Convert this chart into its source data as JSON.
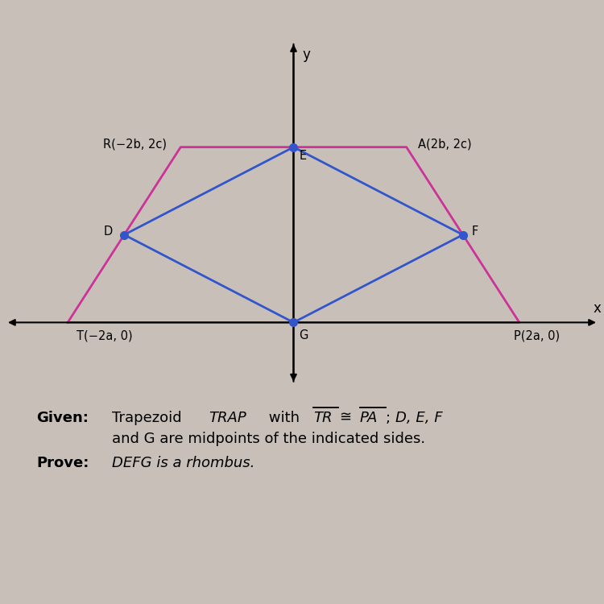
{
  "T": [
    -4,
    0
  ],
  "R": [
    -2,
    3
  ],
  "A": [
    2,
    3
  ],
  "P": [
    4,
    0
  ],
  "D": [
    -3,
    1.5
  ],
  "E": [
    0,
    3
  ],
  "F": [
    3,
    1.5
  ],
  "G": [
    0,
    0
  ],
  "trapezoid_color": "#cc3399",
  "rhombus_color": "#3355cc",
  "point_color": "#3355cc",
  "background_color": "#c8c0b8",
  "xlim": [
    -5.2,
    5.5
  ],
  "ylim": [
    -1.2,
    5.0
  ],
  "label_T": "T(−2a, 0)",
  "label_R": "R(−2b, 2c)",
  "label_A": "A(2b, 2c)",
  "label_P": "P(2a, 0)",
  "label_D": "D",
  "label_E": "E",
  "label_F": "F",
  "label_G": "G",
  "label_x": "x",
  "label_y": "y"
}
